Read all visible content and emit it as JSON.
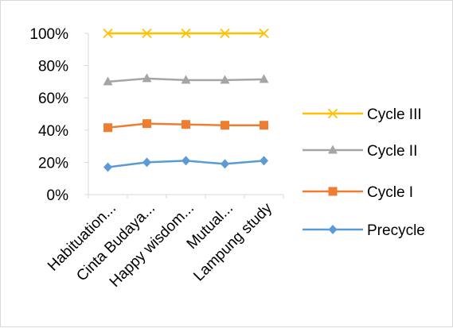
{
  "chart_data": {
    "type": "line",
    "categories": [
      "Habituation...",
      "Cinta Budaya...",
      "Happy wisdom...",
      "Mutual...",
      "Lampung study"
    ],
    "y_ticks": [
      "0%",
      "20%",
      "40%",
      "60%",
      "80%",
      "100%"
    ],
    "ylim": [
      0,
      100
    ],
    "grid": false,
    "legend_position": "right",
    "series": [
      {
        "name": "Cycle III",
        "color": "#FFC000",
        "marker": "x",
        "values": [
          100,
          100,
          100,
          100,
          100
        ]
      },
      {
        "name": "Cycle II",
        "color": "#A5A5A5",
        "marker": "triangle",
        "values": [
          70,
          72,
          71,
          71,
          71.5
        ]
      },
      {
        "name": "Cycle I",
        "color": "#ED7D31",
        "marker": "square",
        "values": [
          41.5,
          44,
          43.5,
          43,
          43
        ]
      },
      {
        "name": "Precycle",
        "color": "#5B9BD5",
        "marker": "diamond",
        "values": [
          17,
          20,
          21,
          19,
          21
        ]
      }
    ]
  }
}
